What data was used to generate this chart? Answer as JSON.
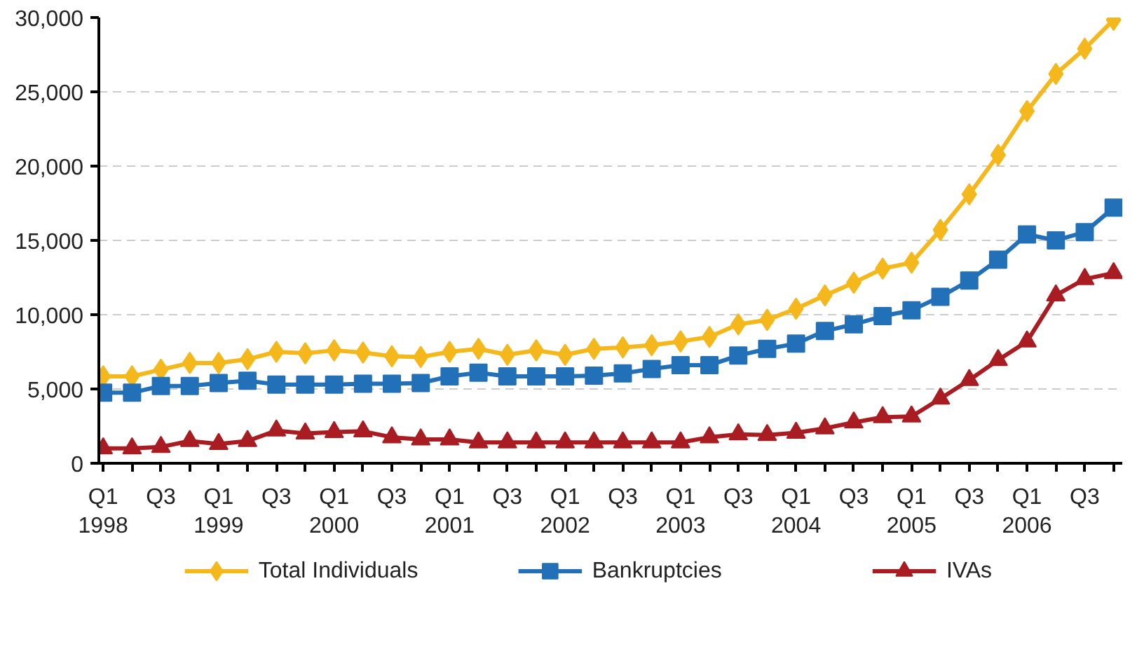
{
  "chart_data": {
    "type": "line",
    "categories": [
      "Q1\n1998",
      null,
      "Q3",
      null,
      "Q1\n1999",
      null,
      "Q3",
      null,
      "Q1\n2000",
      null,
      "Q3",
      null,
      "Q1\n2001",
      null,
      "Q3",
      null,
      "Q1\n2002",
      null,
      "Q3",
      null,
      "Q1\n2003",
      null,
      "Q3",
      null,
      "Q1\n2004",
      null,
      "Q3",
      null,
      "Q1\n2005",
      null,
      "Q3",
      null,
      "Q1\n2006",
      null,
      "Q3",
      null
    ],
    "series": [
      {
        "name": "Total Individuals",
        "color": "#f5b81c",
        "marker": "diamond",
        "values": [
          5850,
          5850,
          6300,
          6750,
          6750,
          7000,
          7500,
          7400,
          7600,
          7450,
          7200,
          7150,
          7500,
          7700,
          7300,
          7600,
          7300,
          7700,
          7800,
          7950,
          8200,
          8500,
          9350,
          9650,
          10400,
          11300,
          12150,
          13100,
          13500,
          15700,
          18100,
          20750,
          23700,
          26200,
          27900,
          29850
        ]
      },
      {
        "name": "Bankruptcies",
        "color": "#2270b8",
        "marker": "square",
        "values": [
          4750,
          4750,
          5200,
          5200,
          5400,
          5550,
          5300,
          5300,
          5300,
          5350,
          5350,
          5400,
          5850,
          6100,
          5850,
          5850,
          5850,
          5900,
          6050,
          6350,
          6600,
          6600,
          7250,
          7700,
          8050,
          8900,
          9350,
          9900,
          10300,
          11200,
          12300,
          13700,
          15400,
          15000,
          15550,
          17200
        ]
      },
      {
        "name": "IVAs",
        "color": "#a81c22",
        "marker": "triangle",
        "values": [
          1000,
          1000,
          1100,
          1500,
          1300,
          1500,
          2200,
          2000,
          2100,
          2150,
          1750,
          1600,
          1600,
          1400,
          1400,
          1400,
          1400,
          1400,
          1400,
          1400,
          1400,
          1750,
          1950,
          1900,
          2050,
          2350,
          2750,
          3100,
          3150,
          4350,
          5600,
          6950,
          8200,
          11300,
          12400,
          12800
        ]
      }
    ],
    "ylim": [
      0,
      30000
    ],
    "yticks": [
      0,
      {
        "value": 5000,
        "label": "5,000"
      },
      {
        "value": 10000,
        "label": "10,000"
      },
      {
        "value": 15000,
        "label": "15,000"
      },
      {
        "value": 20000,
        "label": "20,000"
      },
      {
        "value": 25000,
        "label": "25,000"
      },
      {
        "value": 30000,
        "label": "30,000"
      }
    ],
    "grid": "y",
    "legend": "bottom",
    "line_style": "solid"
  }
}
